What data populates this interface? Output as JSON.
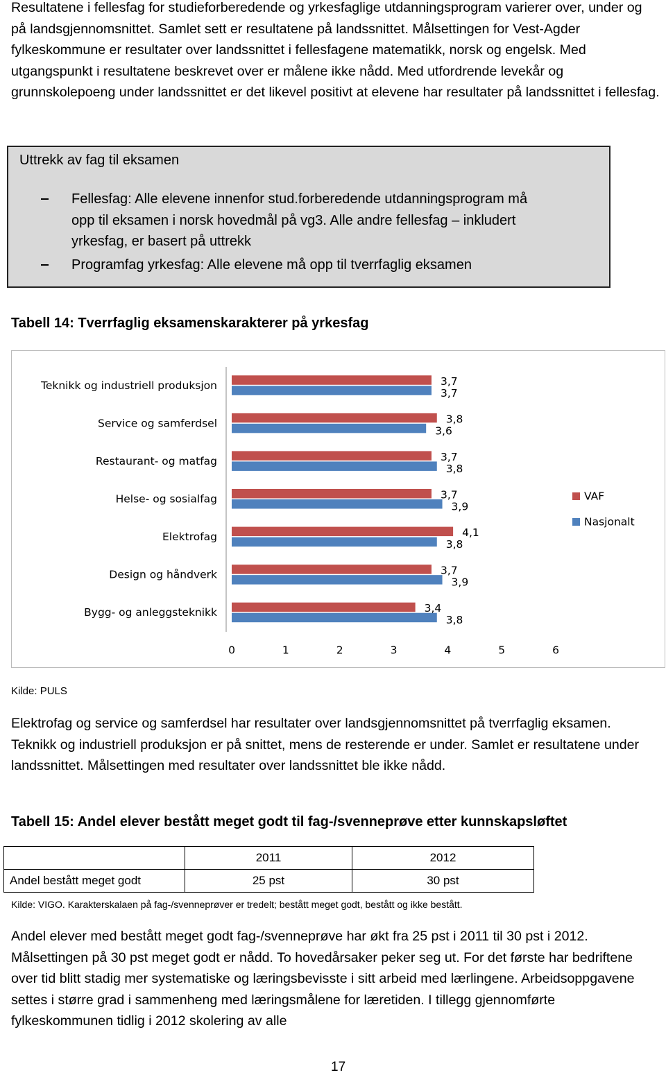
{
  "intro": "Resultatene i fellesfag for studieforberedende og yrkesfaglige utdanningsprogram varierer over, under og på landsgjennomsnittet. Samlet sett er resultatene på landssnittet. Målsettingen for Vest-Agder fylkeskommune er resultater over landssnittet i fellesfagene matematikk, norsk og engelsk. Med utgangspunkt i resultatene beskrevet over er målene ikke nådd. Med utfordrende levekår og grunnskolepoeng under landssnittet er det likevel positivt at elevene har resultater på landssnittet i fellesfag.",
  "box": {
    "title": "Uttrekk av fag til eksamen",
    "items": [
      "Fellesfag: Alle elevene innenfor stud.forberedende utdanningsprogram må opp til eksamen i norsk hovedmål på vg3. Alle andre fellesfag – inkludert yrkesfag, er basert på uttrekk",
      "Programfag yrkesfag: Alle elevene må opp til tverrfaglig eksamen"
    ]
  },
  "table14_caption": "Tabell 14: Tverrfaglig eksamenskarakterer på yrkesfag",
  "chart_data": {
    "type": "bar",
    "orientation": "horizontal",
    "categories": [
      "Teknikk og industriell produksjon",
      "Service og samferdsel",
      "Restaurant- og matfag",
      "Helse- og sosialfag",
      "Elektrofag",
      "Design og håndverk",
      "Bygg- og anleggsteknikk"
    ],
    "series": [
      {
        "name": "VAF",
        "color": "#c0504d",
        "values": [
          3.7,
          3.8,
          3.7,
          3.7,
          4.1,
          3.7,
          3.4
        ],
        "value_labels": [
          "3,7",
          "3,8",
          "3,7",
          "3,7",
          "4,1",
          "3,7",
          "3,4"
        ]
      },
      {
        "name": "Nasjonalt",
        "color": "#4f81bd",
        "values": [
          3.7,
          3.6,
          3.8,
          3.9,
          3.8,
          3.9,
          3.8
        ],
        "value_labels": [
          "3,7",
          "3,6",
          "3,8",
          "3,9",
          "3,8",
          "3,9",
          "3,8"
        ]
      }
    ],
    "xlim": [
      0,
      6
    ],
    "xticks": [
      0,
      1,
      2,
      3,
      4,
      5,
      6
    ],
    "legend": "right",
    "grid": false
  },
  "source_14": "Kilde: PULS",
  "paragraph_2": "Elektrofag og service og samferdsel har resultater over landsgjennomsnittet på tverrfaglig eksamen. Teknikk og industriell produksjon er på snittet, mens de resterende er under. Samlet er resultatene under landssnittet. Målsettingen med resultater over landssnittet ble ikke nådd.",
  "table15": {
    "caption": "Tabell 15: Andel elever bestått meget godt til fag-/svenneprøve etter kunnskapsløftet",
    "columns": [
      "2011",
      "2012"
    ],
    "rows": [
      [
        "Andel bestått meget godt",
        "25 pst",
        "30 pst"
      ]
    ]
  },
  "source_15": "Kilde: VIGO. Karakterskalaen på fag-/svenneprøver er tredelt; bestått meget godt, bestått og ikke bestått.",
  "paragraph_3": "Andel elever med bestått meget godt fag-/svenneprøve har økt fra 25 pst i 2011 til 30 pst i 2012. Målsettingen på 30 pst meget godt er nådd. To hovedårsaker peker seg ut. For det første har bedriftene over tid blitt stadig mer systematiske og læringsbevisste i sitt arbeid med lærlingene. Arbeidsoppgavene settes i større grad i sammenheng med læringsmålene for læretiden. I tillegg gjennomførte fylkeskommunen tidlig i 2012 skolering av alle",
  "page_number": "17"
}
